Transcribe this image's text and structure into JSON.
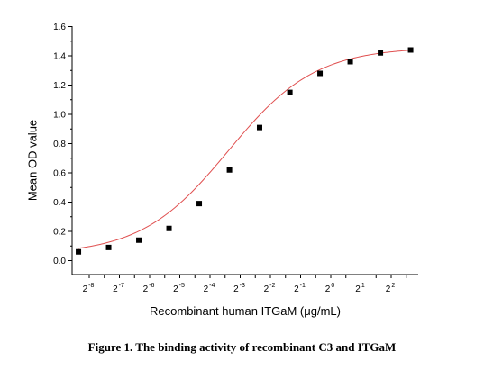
{
  "chart_data": {
    "type": "scatter",
    "title": "",
    "xlabel": "Recombinant human ITGaM (μg/mL)",
    "ylabel": "Mean OD value",
    "ylim": [
      0.0,
      1.6
    ],
    "y_ticks": [
      "0.0",
      "0.2",
      "0.4",
      "0.6",
      "0.8",
      "1.0",
      "1.2",
      "1.4",
      "1.6"
    ],
    "x_scale": "log2",
    "x_tick_labels": [
      {
        "base": "2",
        "exp": "-8"
      },
      {
        "base": "2",
        "exp": "-7"
      },
      {
        "base": "2",
        "exp": "-6"
      },
      {
        "base": "2",
        "exp": "-5"
      },
      {
        "base": "2",
        "exp": "-4"
      },
      {
        "base": "2",
        "exp": "-3"
      },
      {
        "base": "2",
        "exp": "-2"
      },
      {
        "base": "2",
        "exp": "-1"
      },
      {
        "base": "2",
        "exp": "0"
      },
      {
        "base": "2",
        "exp": "1"
      },
      {
        "base": "2",
        "exp": "2"
      }
    ],
    "series": [
      {
        "x": [
          0.00305,
          0.0061,
          0.0122,
          0.0244,
          0.0488,
          0.0977,
          0.195,
          0.391,
          0.781,
          1.5625,
          3.125,
          6.25
        ],
        "y": [
          0.06,
          0.09,
          0.14,
          0.22,
          0.39,
          0.62,
          0.91,
          1.15,
          1.28,
          1.36,
          1.42,
          1.44
        ],
        "marker": "square",
        "marker_color": "#000000",
        "fit_curve": true,
        "fit_color": "#e05050"
      }
    ],
    "grid": false,
    "legend": "none"
  },
  "caption": "Figure 1. The binding activity of recombinant C3 and ITGaM"
}
